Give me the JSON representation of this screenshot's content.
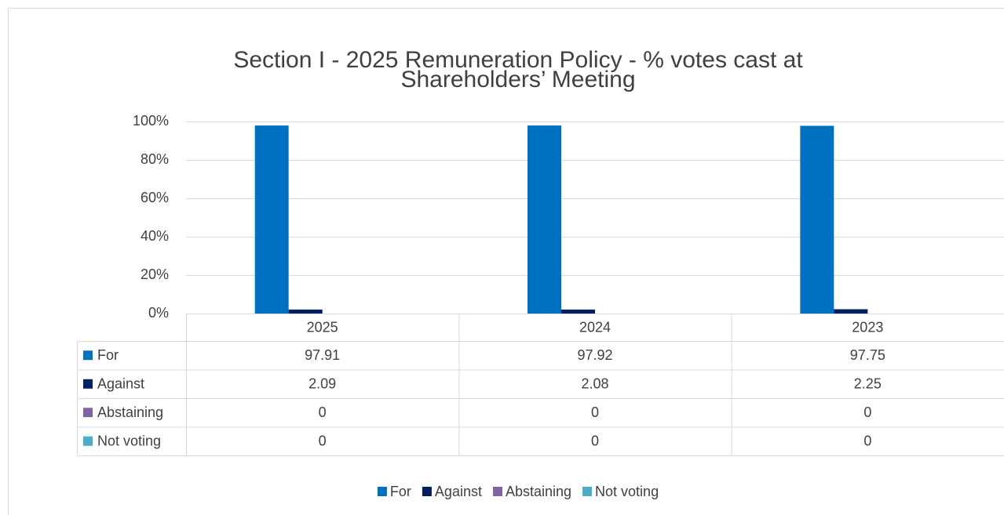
{
  "chart_data": {
    "type": "bar",
    "title": "Section I - 2025 Remuneration Policy - % votes cast at",
    "subtitle": "Shareholders’ Meeting",
    "categories": [
      "2025",
      "2024",
      "2023"
    ],
    "series": [
      {
        "name": "For",
        "color": "#0070c0",
        "values": [
          97.91,
          97.92,
          97.75
        ]
      },
      {
        "name": "Against",
        "color": "#002060",
        "values": [
          2.09,
          2.08,
          2.25
        ]
      },
      {
        "name": "Abstaining",
        "color": "#8064a2",
        "values": [
          0,
          0,
          0
        ]
      },
      {
        "name": "Not voting",
        "color": "#4bacc6",
        "values": [
          0,
          0,
          0
        ]
      }
    ],
    "ylim": [
      0,
      100
    ],
    "yticks": [
      {
        "value": 0,
        "label": "0%"
      },
      {
        "value": 20,
        "label": "20%"
      },
      {
        "value": 40,
        "label": "40%"
      },
      {
        "value": 60,
        "label": "60%"
      },
      {
        "value": 80,
        "label": "80%"
      },
      {
        "value": 100,
        "label": "100%"
      }
    ],
    "grid": true,
    "legend": "bottom",
    "data_table": true
  }
}
